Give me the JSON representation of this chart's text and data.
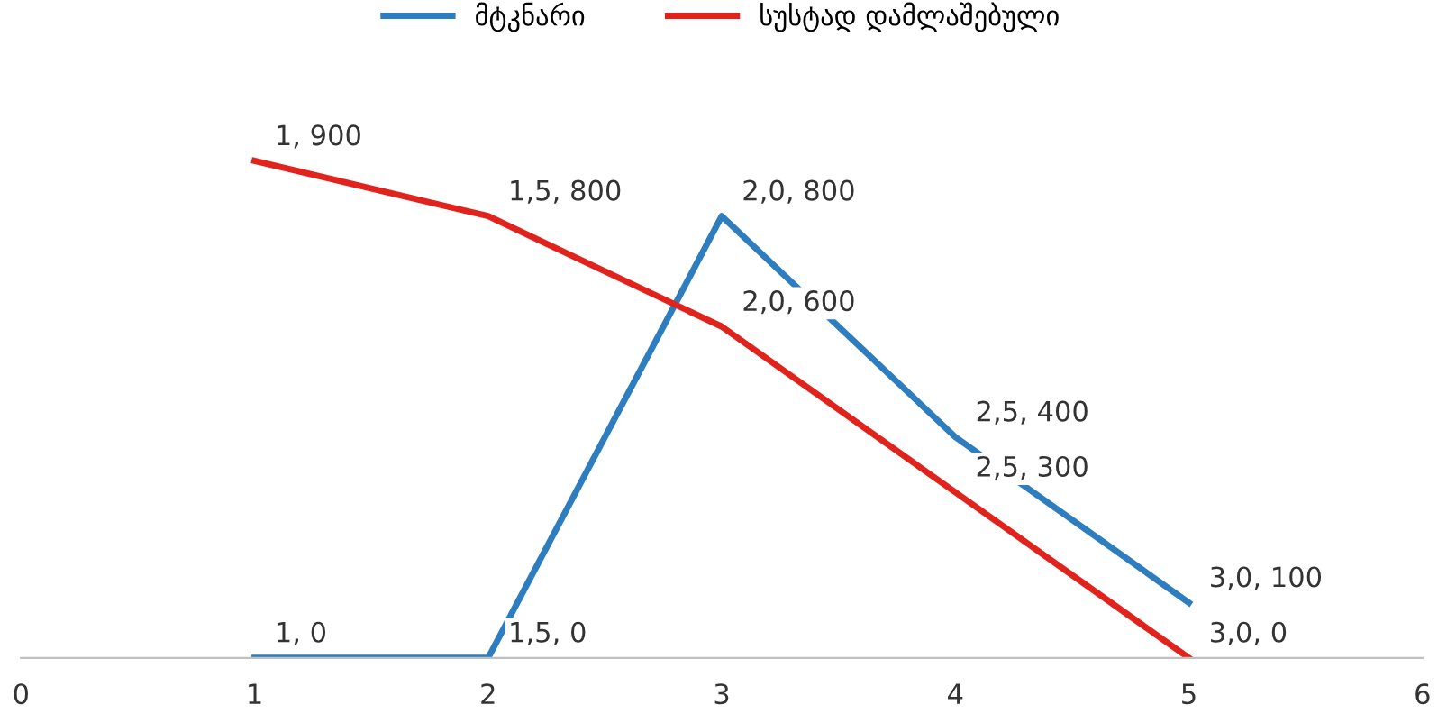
{
  "chart_data": {
    "type": "line",
    "x": [
      1,
      2,
      3,
      4,
      5
    ],
    "xlim": [
      0,
      6
    ],
    "xticks": [
      0,
      1,
      2,
      3,
      4,
      5,
      6
    ],
    "tick_labels": "x",
    "grid": false,
    "legend": "top",
    "line_style": "solid",
    "marker": "none",
    "series": [
      {
        "name": "მტკნარი",
        "color": "#2e7ebf",
        "values": [
          0,
          0,
          800,
          400,
          100
        ],
        "value_labels": [
          "1, 0",
          "1,5, 0",
          "2,0, 800",
          "2,5, 400",
          "3,0, 100"
        ]
      },
      {
        "name": "სუსტად დამლაშებული",
        "color": "#e0231c",
        "values": [
          900,
          800,
          600,
          300,
          0
        ],
        "value_labels": [
          "1, 900",
          "1,5, 800",
          "2,0, 600",
          "2,5, 300",
          "3,0, 0"
        ]
      }
    ]
  }
}
